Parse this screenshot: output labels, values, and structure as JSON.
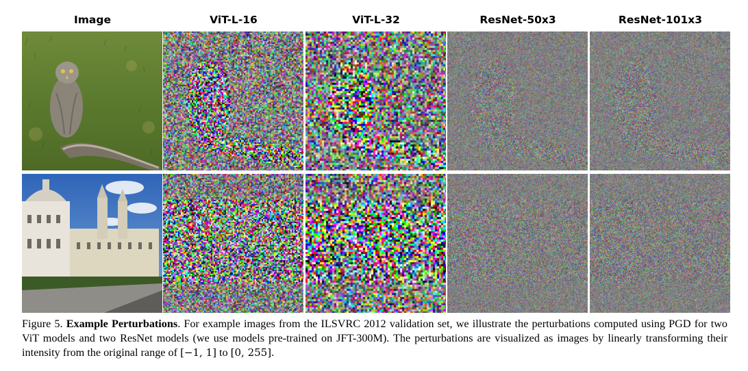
{
  "figure": {
    "column_headers": [
      "Image",
      "ViT-L-16",
      "ViT-L-32",
      "ResNet-50x3",
      "ResNet-101x3"
    ],
    "rows": [
      {
        "image_subject": "owl",
        "perturbation_style": [
          "vit16",
          "vit32",
          "resnet",
          "resnet"
        ]
      },
      {
        "image_subject": "palace",
        "perturbation_style": [
          "vit16",
          "vit32",
          "resnet",
          "resnet"
        ]
      }
    ]
  },
  "caption": {
    "label": "Figure 5.",
    "title": "Example Perturbations",
    "text_before_math": ". For example images from the ILSVRC 2012 validation set, we illustrate the perturbations computed using PGD for two ViT models and two ResNet models (we use models pre-trained on JFT-300M). The perturbations are visualized as images by linearly transforming their intensity from the original range of ",
    "range_from": "[−1, 1]",
    "text_between": " to ",
    "range_to": "[0, 255]",
    "text_end": "."
  },
  "colors": {
    "sky": "#4a7fc8",
    "grass": "#5b7a2e",
    "building": "#e8e4dc",
    "owl": "#8a8578"
  }
}
